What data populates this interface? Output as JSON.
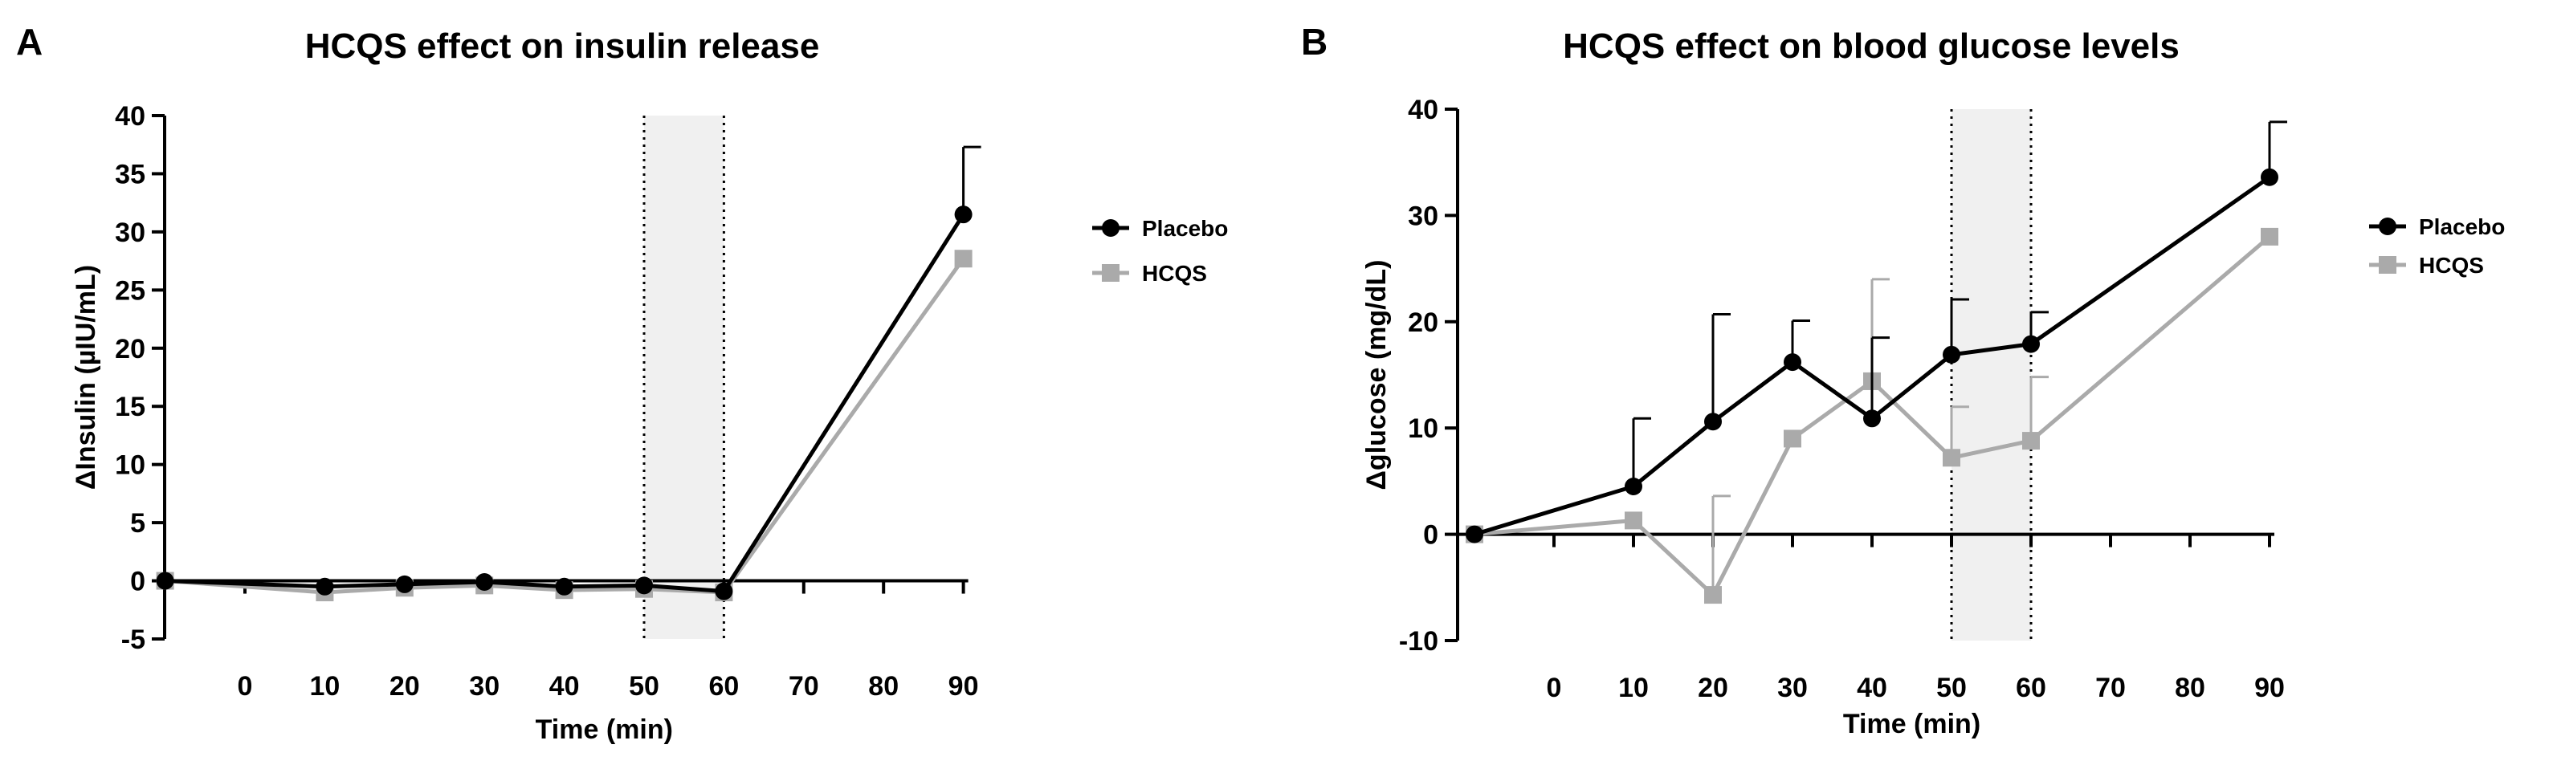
{
  "chart_data": [
    {
      "panel": "A",
      "type": "line",
      "title": "HCQS effect on insulin release",
      "xlabel": "Time (min)",
      "ylabel": "ΔInsulin (µIU/mL)",
      "x_ticks": [
        "0",
        "10",
        "20",
        "30",
        "40",
        "50",
        "60",
        "70",
        "80",
        "90"
      ],
      "y_ticks": [
        40,
        35,
        30,
        25,
        20,
        15,
        10,
        5,
        0,
        -5
      ],
      "ylim": [
        -5,
        40
      ],
      "shaded_region": [
        50,
        60
      ],
      "grid": false,
      "legend": "right",
      "series": [
        {
          "name": "Placebo",
          "color": "#000000",
          "marker": "circle",
          "x": [
            -10,
            10,
            20,
            30,
            40,
            50,
            60,
            90
          ],
          "y": [
            0,
            -0.5,
            -0.3,
            -0.1,
            -0.5,
            -0.4,
            -0.9,
            31.5
          ],
          "error_plus": [
            0,
            0,
            0,
            0,
            0,
            0,
            0,
            5.8
          ]
        },
        {
          "name": "HCQS",
          "color": "#aaaaaa",
          "marker": "square",
          "x": [
            -10,
            10,
            20,
            30,
            40,
            50,
            60,
            90
          ],
          "y": [
            0,
            -1.0,
            -0.6,
            -0.4,
            -0.8,
            -0.7,
            -1.0,
            27.7
          ],
          "error_plus": [
            0,
            0,
            0,
            0,
            0,
            0,
            0,
            0
          ]
        }
      ]
    },
    {
      "panel": "B",
      "type": "line",
      "title": "HCQS effect on blood glucose levels",
      "xlabel": "Time (min)",
      "ylabel": "Δglucose (mg/dL)",
      "x_ticks": [
        "0",
        "10",
        "20",
        "30",
        "40",
        "50",
        "60",
        "70",
        "80",
        "90"
      ],
      "y_ticks": [
        40,
        30,
        20,
        10,
        0,
        -10
      ],
      "ylim": [
        -10,
        40
      ],
      "shaded_region": [
        50,
        60
      ],
      "grid": false,
      "legend": "right",
      "series": [
        {
          "name": "Placebo",
          "color": "#000000",
          "marker": "circle",
          "x": [
            -10,
            10,
            20,
            30,
            40,
            50,
            60,
            90
          ],
          "y": [
            0,
            4.5,
            10.6,
            16.2,
            10.9,
            16.9,
            17.9,
            33.6
          ],
          "error_plus": [
            0,
            6.4,
            10.1,
            3.9,
            7.6,
            5.2,
            3.0,
            5.2
          ]
        },
        {
          "name": "HCQS",
          "color": "#aaaaaa",
          "marker": "square",
          "x": [
            -10,
            10,
            20,
            30,
            40,
            50,
            60,
            90
          ],
          "y": [
            0,
            1.3,
            -5.7,
            9.0,
            14.4,
            7.2,
            8.8,
            28.0
          ],
          "error_plus": [
            0,
            0,
            9.3,
            0,
            9.6,
            4.8,
            6.0,
            0
          ]
        }
      ]
    }
  ]
}
